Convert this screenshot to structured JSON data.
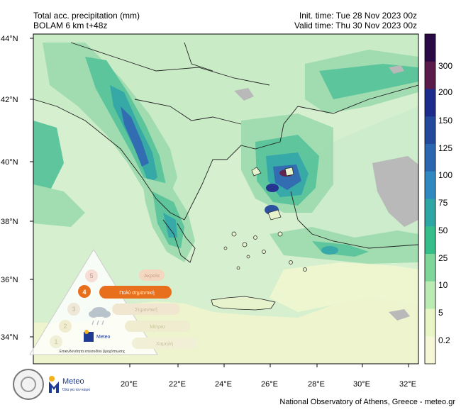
{
  "header": {
    "title": "Total acc. precipitation (mm)",
    "model": "BOLAM 6 km t+48z",
    "init_time": "Init. time: Tue 28 Nov 2023 00z",
    "valid_time": "Valid time: Thu 30 Nov 2023 00z"
  },
  "axes": {
    "lat_labels": [
      "44°N",
      "42°N",
      "40°N",
      "38°N",
      "36°N",
      "34°N"
    ],
    "lon_labels": [
      "20°E",
      "22°E",
      "24°E",
      "26°E",
      "28°E",
      "30°E",
      "32°E"
    ]
  },
  "colorbar": {
    "labels": [
      "300",
      "200",
      "150",
      "125",
      "100",
      "75",
      "50",
      "25",
      "10",
      "5",
      "0.2"
    ],
    "colors": [
      "#2a0a45",
      "#5a1a4a",
      "#1c2b8c",
      "#23499c",
      "#2a67b0",
      "#2f88c0",
      "#2fa6a6",
      "#35be8a",
      "#7fd69a",
      "#b9ebb2",
      "#e8f5c4",
      "#f5f7d6"
    ]
  },
  "warning_infographic": {
    "levels": [
      "5",
      "4",
      "3",
      "2",
      "1"
    ],
    "level_labels": [
      "Ακραία",
      "Πολύ σημαντική",
      "Σημαντική",
      "Μέτρια",
      "Χαμηλή"
    ],
    "active_level": "4",
    "logo_text": "Meteo",
    "caption": "Επικινδυνότητα επεισοδίου βροχόπτωσης",
    "colors": {
      "active": "#e8701c",
      "inactive": "#f4d7c0",
      "pale": "#efe8c8"
    }
  },
  "brand": {
    "name": "Meteo",
    "tagline": "Όλα για τον καιρό"
  },
  "footer": {
    "credit": "National Observatory of Athens, Greece - meteo.gr"
  },
  "map_colors": {
    "sea": "#d0efcf",
    "land_low": "#e9f4c6",
    "dry": "#eef6d2",
    "gray": "#b8b8b8",
    "border": "#222222"
  }
}
